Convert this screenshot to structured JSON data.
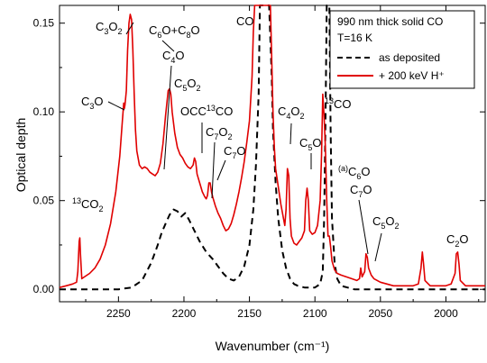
{
  "chart_data": {
    "type": "line",
    "xlabel": "Wavenumber (cm⁻¹)",
    "ylabel": "Optical depth",
    "xlim": [
      2295,
      1970
    ],
    "ylim": [
      -0.007,
      0.16
    ],
    "x_ticks": [
      2250,
      2200,
      2150,
      2100,
      2050,
      2000
    ],
    "y_ticks": [
      0.0,
      0.05,
      0.1,
      0.15
    ],
    "x_tick_labels": [
      "2250",
      "2200",
      "2150",
      "2100",
      "2050",
      "2000"
    ],
    "y_tick_labels": [
      "0.00",
      "0.05",
      "0.10",
      "0.15"
    ],
    "legend": {
      "placement": "top-right",
      "lines": [
        "990 nm thick solid CO",
        "T=16 K"
      ],
      "entries": [
        "as deposited",
        "+ 200 keV H⁺"
      ]
    },
    "series": [
      {
        "name": "as deposited",
        "color": "#000000",
        "style": "dashed",
        "points": [
          [
            2295,
            0.0
          ],
          [
            2270,
            0.0
          ],
          [
            2250,
            0.0
          ],
          [
            2240,
            0.001
          ],
          [
            2232,
            0.005
          ],
          [
            2225,
            0.015
          ],
          [
            2220,
            0.025
          ],
          [
            2217,
            0.032
          ],
          [
            2214,
            0.037
          ],
          [
            2211,
            0.042
          ],
          [
            2208,
            0.045
          ],
          [
            2205,
            0.044
          ],
          [
            2202,
            0.041
          ],
          [
            2199,
            0.043
          ],
          [
            2196,
            0.039
          ],
          [
            2192,
            0.033
          ],
          [
            2188,
            0.027
          ],
          [
            2183,
            0.021
          ],
          [
            2178,
            0.017
          ],
          [
            2174,
            0.013
          ],
          [
            2170,
            0.009
          ],
          [
            2166,
            0.006
          ],
          [
            2162,
            0.005
          ],
          [
            2158,
            0.007
          ],
          [
            2154,
            0.013
          ],
          [
            2150,
            0.025
          ],
          [
            2147,
            0.045
          ],
          [
            2145,
            0.07
          ],
          [
            2143,
            0.11
          ],
          [
            2142,
            0.16
          ],
          [
            2135,
            0.16
          ],
          [
            2133,
            0.12
          ],
          [
            2132,
            0.09
          ],
          [
            2130,
            0.06
          ],
          [
            2128,
            0.04
          ],
          [
            2125,
            0.022
          ],
          [
            2122,
            0.012
          ],
          [
            2119,
            0.006
          ],
          [
            2116,
            0.003
          ],
          [
            2113,
            0.002
          ],
          [
            2108,
            0.001
          ],
          [
            2100,
            0.001
          ],
          [
            2096,
            0.003
          ],
          [
            2094,
            0.01
          ],
          [
            2093,
            0.04
          ],
          [
            2092,
            0.09
          ],
          [
            2091,
            0.16
          ],
          [
            2089,
            0.16
          ],
          [
            2088,
            0.09
          ],
          [
            2087,
            0.04
          ],
          [
            2085,
            0.015
          ],
          [
            2083,
            0.006
          ],
          [
            2080,
            0.002
          ],
          [
            2070,
            0.0
          ],
          [
            2050,
            0.0
          ],
          [
            2000,
            0.0
          ],
          [
            1970,
            0.0
          ]
        ]
      },
      {
        "name": "+ 200 keV H⁺",
        "color": "#e00000",
        "style": "solid",
        "points": [
          [
            2295,
            0.001
          ],
          [
            2290,
            0.002
          ],
          [
            2285,
            0.003
          ],
          [
            2282,
            0.004
          ],
          [
            2281,
            0.01
          ],
          [
            2280,
            0.027
          ],
          [
            2279.5,
            0.029
          ],
          [
            2279,
            0.02
          ],
          [
            2278,
            0.006
          ],
          [
            2276,
            0.007
          ],
          [
            2272,
            0.009
          ],
          [
            2268,
            0.012
          ],
          [
            2264,
            0.017
          ],
          [
            2260,
            0.025
          ],
          [
            2256,
            0.037
          ],
          [
            2252,
            0.055
          ],
          [
            2249,
            0.075
          ],
          [
            2247,
            0.095
          ],
          [
            2246,
            0.105
          ],
          [
            2245.5,
            0.102
          ],
          [
            2245,
            0.104
          ],
          [
            2244,
            0.112
          ],
          [
            2243,
            0.135
          ],
          [
            2242,
            0.15
          ],
          [
            2241,
            0.155
          ],
          [
            2240,
            0.152
          ],
          [
            2239,
            0.135
          ],
          [
            2238,
            0.11
          ],
          [
            2237,
            0.09
          ],
          [
            2236,
            0.078
          ],
          [
            2234,
            0.07
          ],
          [
            2232,
            0.068
          ],
          [
            2230,
            0.069
          ],
          [
            2228,
            0.068
          ],
          [
            2226,
            0.066
          ],
          [
            2224,
            0.065
          ],
          [
            2222,
            0.064
          ],
          [
            2220,
            0.066
          ],
          [
            2218,
            0.071
          ],
          [
            2216,
            0.082
          ],
          [
            2214,
            0.098
          ],
          [
            2212,
            0.112
          ],
          [
            2211,
            0.113
          ],
          [
            2210,
            0.11
          ],
          [
            2209,
            0.1
          ],
          [
            2207,
            0.088
          ],
          [
            2205,
            0.08
          ],
          [
            2203,
            0.076
          ],
          [
            2201,
            0.074
          ],
          [
            2199,
            0.071
          ],
          [
            2197,
            0.069
          ],
          [
            2195,
            0.068
          ],
          [
            2193,
            0.07
          ],
          [
            2192,
            0.074
          ],
          [
            2191,
            0.072
          ],
          [
            2190,
            0.065
          ],
          [
            2188,
            0.06
          ],
          [
            2186,
            0.055
          ],
          [
            2184,
            0.052
          ],
          [
            2183,
            0.051
          ],
          [
            2182,
            0.053
          ],
          [
            2181,
            0.06
          ],
          [
            2180,
            0.06
          ],
          [
            2179,
            0.055
          ],
          [
            2178,
            0.052
          ],
          [
            2176,
            0.047
          ],
          [
            2174,
            0.043
          ],
          [
            2172,
            0.04
          ],
          [
            2170,
            0.036
          ],
          [
            2168,
            0.033
          ],
          [
            2166,
            0.034
          ],
          [
            2164,
            0.037
          ],
          [
            2162,
            0.042
          ],
          [
            2160,
            0.048
          ],
          [
            2158,
            0.055
          ],
          [
            2156,
            0.063
          ],
          [
            2154,
            0.072
          ],
          [
            2152,
            0.083
          ],
          [
            2150,
            0.095
          ],
          [
            2148,
            0.12
          ],
          [
            2147,
            0.145
          ],
          [
            2146,
            0.16
          ],
          [
            2134,
            0.16
          ],
          [
            2133,
            0.13
          ],
          [
            2132,
            0.1
          ],
          [
            2131,
            0.08
          ],
          [
            2130,
            0.068
          ],
          [
            2128,
            0.058
          ],
          [
            2126,
            0.048
          ],
          [
            2124,
            0.04
          ],
          [
            2123,
            0.036
          ],
          [
            2122,
            0.045
          ],
          [
            2121,
            0.068
          ],
          [
            2120,
            0.064
          ],
          [
            2119,
            0.04
          ],
          [
            2118,
            0.03
          ],
          [
            2116,
            0.026
          ],
          [
            2114,
            0.025
          ],
          [
            2112,
            0.027
          ],
          [
            2110,
            0.029
          ],
          [
            2108,
            0.033
          ],
          [
            2107,
            0.05
          ],
          [
            2106,
            0.057
          ],
          [
            2105,
            0.05
          ],
          [
            2104,
            0.033
          ],
          [
            2102,
            0.031
          ],
          [
            2100,
            0.032
          ],
          [
            2098,
            0.036
          ],
          [
            2096,
            0.05
          ],
          [
            2095,
            0.075
          ],
          [
            2094,
            0.11
          ],
          [
            2093,
            0.097
          ],
          [
            2092,
            0.08
          ],
          [
            2091,
            0.05
          ],
          [
            2090,
            0.03
          ],
          [
            2089,
            0.03
          ],
          [
            2088,
            0.024
          ],
          [
            2087,
            0.016
          ],
          [
            2085,
            0.011
          ],
          [
            2083,
            0.009
          ],
          [
            2080,
            0.008
          ],
          [
            2076,
            0.007
          ],
          [
            2072,
            0.006
          ],
          [
            2068,
            0.005
          ],
          [
            2066,
            0.006
          ],
          [
            2065,
            0.012
          ],
          [
            2064,
            0.007
          ],
          [
            2062,
            0.01
          ],
          [
            2061,
            0.02
          ],
          [
            2060,
            0.018
          ],
          [
            2059,
            0.012
          ],
          [
            2057,
            0.008
          ],
          [
            2055,
            0.006
          ],
          [
            2050,
            0.004
          ],
          [
            2045,
            0.003
          ],
          [
            2040,
            0.002
          ],
          [
            2030,
            0.002
          ],
          [
            2025,
            0.002
          ],
          [
            2021,
            0.003
          ],
          [
            2019,
            0.012
          ],
          [
            2018,
            0.021
          ],
          [
            2017,
            0.014
          ],
          [
            2016,
            0.005
          ],
          [
            2012,
            0.002
          ],
          [
            2000,
            0.002
          ],
          [
            1996,
            0.003
          ],
          [
            1993,
            0.009
          ],
          [
            1992,
            0.02
          ],
          [
            1991,
            0.021
          ],
          [
            1990,
            0.014
          ],
          [
            1989,
            0.005
          ],
          [
            1985,
            0.002
          ],
          [
            1980,
            0.002
          ],
          [
            1970,
            0.002
          ]
        ]
      }
    ],
    "annotations": [
      {
        "id": "co2-13",
        "base": "CO",
        "pre_sup": "13",
        "sub": "2"
      },
      {
        "id": "c3o",
        "base": "C",
        "sub": "3",
        "after": "O"
      },
      {
        "id": "c3o2",
        "base": "C",
        "sub": "3",
        "after": "O",
        "sub2": "2"
      },
      {
        "id": "c6o-c8o",
        "text": "C₆O+C₈O"
      },
      {
        "id": "c4o",
        "base": "C",
        "sub": "4",
        "after": "O"
      },
      {
        "id": "c5o2",
        "base": "C",
        "sub": "5",
        "after": "O",
        "sub2": "2"
      },
      {
        "id": "occ13co",
        "text": "OCC¹³CO"
      },
      {
        "id": "c7o2",
        "base": "C",
        "sub": "7",
        "after": "O",
        "sub2": "2"
      },
      {
        "id": "c7o",
        "base": "C",
        "sub": "7",
        "after": "O"
      },
      {
        "id": "co",
        "text": "CO"
      },
      {
        "id": "c4o2",
        "base": "C",
        "sub": "4",
        "after": "O",
        "sub2": "2"
      },
      {
        "id": "c5o",
        "base": "C",
        "sub": "5",
        "after": "O"
      },
      {
        "id": "co-13",
        "text": "¹³CO"
      },
      {
        "id": "a-c6o",
        "text": "⁽ᵃ⁾C₆O"
      },
      {
        "id": "c7o-b",
        "base": "C",
        "sub": "7",
        "after": "O"
      },
      {
        "id": "c5o2-b",
        "base": "C",
        "sub": "5",
        "after": "O",
        "sub2": "2"
      },
      {
        "id": "c2o",
        "base": "C",
        "sub": "2",
        "after": "O"
      }
    ]
  }
}
